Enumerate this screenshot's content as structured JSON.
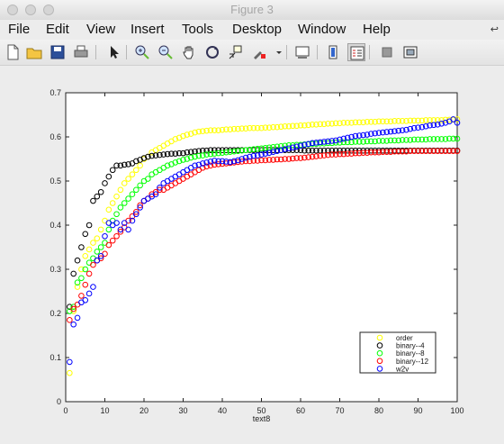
{
  "window": {
    "title": "Figure 3"
  },
  "menu": {
    "items": [
      "File",
      "Edit",
      "View",
      "Insert",
      "Tools",
      "Desktop",
      "Window",
      "Help"
    ]
  },
  "colors": {
    "order": "#ffff00",
    "binary-4": "#000000",
    "binary-8": "#00ff00",
    "binary-12": "#ff0000",
    "w2v": "#0000ff"
  },
  "chart_data": {
    "type": "scatter",
    "title": "",
    "xlabel": "text8",
    "ylabel": "",
    "xlim": [
      0,
      100
    ],
    "ylim": [
      0,
      0.7
    ],
    "xticks": [
      "0",
      "10",
      "20",
      "30",
      "40",
      "50",
      "60",
      "70",
      "80",
      "90",
      "100"
    ],
    "yticks": [
      "0",
      "0.1",
      "0.2",
      "0.3",
      "0.4",
      "0.5",
      "0.6",
      "0.7"
    ],
    "grid": false,
    "legend_position": "bottom-right",
    "series": [
      {
        "name": "order",
        "color": "#ffff00",
        "x": [
          1,
          2,
          3,
          4,
          5,
          6,
          7,
          8,
          9,
          10,
          11,
          12,
          13,
          14,
          15,
          16,
          17,
          18,
          19,
          20,
          21,
          22,
          23,
          24,
          25,
          26,
          27,
          28,
          29,
          30,
          31,
          32,
          33,
          34,
          35,
          36,
          37,
          38,
          39,
          40,
          41,
          42,
          43,
          44,
          45,
          46,
          47,
          48,
          49,
          50,
          51,
          52,
          53,
          54,
          55,
          56,
          57,
          58,
          59,
          60,
          61,
          62,
          63,
          64,
          65,
          66,
          67,
          68,
          69,
          70,
          71,
          72,
          73,
          74,
          75,
          76,
          77,
          78,
          79,
          80,
          81,
          82,
          83,
          84,
          85,
          86,
          87,
          88,
          89,
          90,
          91,
          92,
          93,
          94,
          95,
          96,
          97,
          98,
          99,
          100
        ],
        "y": [
          0.065,
          0.205,
          0.26,
          0.3,
          0.33,
          0.345,
          0.36,
          0.37,
          0.39,
          0.41,
          0.435,
          0.45,
          0.465,
          0.48,
          0.495,
          0.505,
          0.515,
          0.525,
          0.535,
          0.55,
          0.555,
          0.565,
          0.57,
          0.575,
          0.58,
          0.585,
          0.59,
          0.595,
          0.598,
          0.602,
          0.605,
          0.607,
          0.61,
          0.612,
          0.613,
          0.614,
          0.615,
          0.615,
          0.615,
          0.616,
          0.617,
          0.617,
          0.618,
          0.618,
          0.619,
          0.619,
          0.62,
          0.62,
          0.62,
          0.62,
          0.621,
          0.621,
          0.622,
          0.622,
          0.623,
          0.624,
          0.624,
          0.625,
          0.625,
          0.626,
          0.626,
          0.627,
          0.628,
          0.628,
          0.629,
          0.629,
          0.63,
          0.63,
          0.631,
          0.631,
          0.632,
          0.632,
          0.632,
          0.633,
          0.633,
          0.633,
          0.634,
          0.634,
          0.634,
          0.635,
          0.635,
          0.635,
          0.635,
          0.636,
          0.636,
          0.636,
          0.636,
          0.637,
          0.637,
          0.637,
          0.637,
          0.638,
          0.638,
          0.638,
          0.638,
          0.638,
          0.639,
          0.639,
          0.639,
          0.64
        ]
      },
      {
        "name": "binary--4",
        "color": "#000000",
        "x": [
          1,
          2,
          3,
          4,
          5,
          6,
          7,
          8,
          9,
          10,
          11,
          12,
          13,
          14,
          15,
          16,
          17,
          18,
          19,
          20,
          21,
          22,
          23,
          24,
          25,
          26,
          27,
          28,
          29,
          30,
          31,
          32,
          33,
          34,
          35,
          36,
          37,
          38,
          39,
          40,
          41,
          42,
          43,
          44,
          45,
          46,
          47,
          48,
          49,
          50,
          51,
          52,
          53,
          54,
          55,
          56,
          57,
          58,
          59,
          60,
          61,
          62,
          63,
          64,
          65,
          66,
          67,
          68,
          69,
          70,
          71,
          72,
          73,
          74,
          75,
          76,
          77,
          78,
          79,
          80,
          81,
          82,
          83,
          84,
          85,
          86,
          87,
          88,
          89,
          90,
          91,
          92,
          93,
          94,
          95,
          96,
          97,
          98,
          99,
          100
        ],
        "y": [
          0.215,
          0.29,
          0.32,
          0.35,
          0.38,
          0.4,
          0.455,
          0.465,
          0.475,
          0.495,
          0.51,
          0.525,
          0.535,
          0.535,
          0.537,
          0.538,
          0.54,
          0.545,
          0.548,
          0.552,
          0.555,
          0.557,
          0.558,
          0.559,
          0.56,
          0.561,
          0.562,
          0.562,
          0.563,
          0.563,
          0.565,
          0.566,
          0.567,
          0.568,
          0.569,
          0.569,
          0.57,
          0.57,
          0.57,
          0.57,
          0.57,
          0.57,
          0.57,
          0.57,
          0.57,
          0.57,
          0.57,
          0.57,
          0.57,
          0.57,
          0.57,
          0.57,
          0.57,
          0.57,
          0.57,
          0.57,
          0.57,
          0.57,
          0.57,
          0.57,
          0.569,
          0.569,
          0.569,
          0.569,
          0.569,
          0.569,
          0.569,
          0.569,
          0.569,
          0.569,
          0.569,
          0.569,
          0.569,
          0.569,
          0.569,
          0.569,
          0.569,
          0.569,
          0.569,
          0.569,
          0.569,
          0.569,
          0.569,
          0.569,
          0.569,
          0.569,
          0.569,
          0.569,
          0.569,
          0.569,
          0.569,
          0.569,
          0.569,
          0.569,
          0.569,
          0.569,
          0.569,
          0.569,
          0.569,
          0.569
        ]
      },
      {
        "name": "binary--8",
        "color": "#00ff00",
        "x": [
          1,
          2,
          3,
          4,
          5,
          6,
          7,
          8,
          9,
          10,
          11,
          12,
          13,
          14,
          15,
          16,
          17,
          18,
          19,
          20,
          21,
          22,
          23,
          24,
          25,
          26,
          27,
          28,
          29,
          30,
          31,
          32,
          33,
          34,
          35,
          36,
          37,
          38,
          39,
          40,
          41,
          42,
          43,
          44,
          45,
          46,
          47,
          48,
          49,
          50,
          51,
          52,
          53,
          54,
          55,
          56,
          57,
          58,
          59,
          60,
          61,
          62,
          63,
          64,
          65,
          66,
          67,
          68,
          69,
          70,
          71,
          72,
          73,
          74,
          75,
          76,
          77,
          78,
          79,
          80,
          81,
          82,
          83,
          84,
          85,
          86,
          87,
          88,
          89,
          90,
          91,
          92,
          93,
          94,
          95,
          96,
          97,
          98,
          99,
          100
        ],
        "y": [
          0.205,
          0.215,
          0.27,
          0.28,
          0.3,
          0.315,
          0.325,
          0.34,
          0.35,
          0.36,
          0.39,
          0.41,
          0.425,
          0.44,
          0.45,
          0.46,
          0.47,
          0.48,
          0.49,
          0.5,
          0.505,
          0.515,
          0.52,
          0.525,
          0.53,
          0.535,
          0.538,
          0.542,
          0.545,
          0.548,
          0.55,
          0.553,
          0.555,
          0.557,
          0.558,
          0.56,
          0.561,
          0.562,
          0.563,
          0.564,
          0.565,
          0.566,
          0.567,
          0.568,
          0.569,
          0.57,
          0.571,
          0.572,
          0.573,
          0.574,
          0.575,
          0.576,
          0.577,
          0.578,
          0.579,
          0.58,
          0.581,
          0.581,
          0.582,
          0.582,
          0.583,
          0.583,
          0.584,
          0.584,
          0.585,
          0.585,
          0.586,
          0.586,
          0.587,
          0.587,
          0.588,
          0.588,
          0.588,
          0.589,
          0.589,
          0.589,
          0.59,
          0.59,
          0.59,
          0.591,
          0.591,
          0.591,
          0.592,
          0.592,
          0.592,
          0.593,
          0.593,
          0.593,
          0.594,
          0.594,
          0.594,
          0.594,
          0.595,
          0.595,
          0.595,
          0.595,
          0.595,
          0.596,
          0.596,
          0.596
        ]
      },
      {
        "name": "binary--12",
        "color": "#ff0000",
        "x": [
          1,
          2,
          3,
          4,
          5,
          6,
          7,
          8,
          9,
          10,
          11,
          12,
          13,
          14,
          15,
          16,
          17,
          18,
          19,
          20,
          21,
          22,
          23,
          24,
          25,
          26,
          27,
          28,
          29,
          30,
          31,
          32,
          33,
          34,
          35,
          36,
          37,
          38,
          39,
          40,
          41,
          42,
          43,
          44,
          45,
          46,
          47,
          48,
          49,
          50,
          51,
          52,
          53,
          54,
          55,
          56,
          57,
          58,
          59,
          60,
          61,
          62,
          63,
          64,
          65,
          66,
          67,
          68,
          69,
          70,
          71,
          72,
          73,
          74,
          75,
          76,
          77,
          78,
          79,
          80,
          81,
          82,
          83,
          84,
          85,
          86,
          87,
          88,
          89,
          90,
          91,
          92,
          93,
          94,
          95,
          96,
          97,
          98,
          99,
          100
        ],
        "y": [
          0.185,
          0.21,
          0.22,
          0.24,
          0.265,
          0.29,
          0.31,
          0.32,
          0.325,
          0.335,
          0.355,
          0.365,
          0.375,
          0.385,
          0.395,
          0.41,
          0.42,
          0.43,
          0.445,
          0.455,
          0.46,
          0.47,
          0.475,
          0.48,
          0.48,
          0.485,
          0.49,
          0.495,
          0.5,
          0.505,
          0.51,
          0.515,
          0.52,
          0.525,
          0.53,
          0.533,
          0.535,
          0.537,
          0.538,
          0.539,
          0.54,
          0.541,
          0.542,
          0.543,
          0.544,
          0.545,
          0.545,
          0.546,
          0.546,
          0.547,
          0.547,
          0.548,
          0.548,
          0.549,
          0.549,
          0.55,
          0.55,
          0.551,
          0.552,
          0.552,
          0.553,
          0.554,
          0.555,
          0.556,
          0.557,
          0.558,
          0.559,
          0.56,
          0.56,
          0.561,
          0.561,
          0.562,
          0.562,
          0.563,
          0.563,
          0.564,
          0.564,
          0.565,
          0.565,
          0.565,
          0.566,
          0.566,
          0.566,
          0.567,
          0.567,
          0.567,
          0.567,
          0.568,
          0.568,
          0.568,
          0.568,
          0.568,
          0.568,
          0.568,
          0.568,
          0.568,
          0.568,
          0.568,
          0.568,
          0.568
        ]
      },
      {
        "name": "w2v",
        "color": "#0000ff",
        "x": [
          1,
          2,
          3,
          4,
          5,
          6,
          7,
          8,
          9,
          10,
          11,
          12,
          13,
          14,
          15,
          16,
          17,
          18,
          19,
          20,
          21,
          22,
          23,
          24,
          25,
          26,
          27,
          28,
          29,
          30,
          31,
          32,
          33,
          34,
          35,
          36,
          37,
          38,
          39,
          40,
          41,
          42,
          43,
          44,
          45,
          46,
          47,
          48,
          49,
          50,
          51,
          52,
          53,
          54,
          55,
          56,
          57,
          58,
          59,
          60,
          61,
          62,
          63,
          64,
          65,
          66,
          67,
          68,
          69,
          70,
          71,
          72,
          73,
          74,
          75,
          76,
          77,
          78,
          79,
          80,
          81,
          82,
          83,
          84,
          85,
          86,
          87,
          88,
          89,
          90,
          91,
          92,
          93,
          94,
          95,
          96,
          97,
          98,
          99,
          100
        ],
        "y": [
          0.09,
          0.175,
          0.19,
          0.225,
          0.23,
          0.245,
          0.26,
          0.32,
          0.33,
          0.375,
          0.405,
          0.4,
          0.405,
          0.39,
          0.405,
          0.39,
          0.41,
          0.425,
          0.44,
          0.455,
          0.46,
          0.465,
          0.47,
          0.485,
          0.495,
          0.5,
          0.505,
          0.51,
          0.515,
          0.52,
          0.525,
          0.53,
          0.535,
          0.537,
          0.54,
          0.542,
          0.544,
          0.546,
          0.545,
          0.545,
          0.544,
          0.543,
          0.545,
          0.547,
          0.55,
          0.553,
          0.555,
          0.557,
          0.558,
          0.56,
          0.562,
          0.564,
          0.566,
          0.568,
          0.57,
          0.572,
          0.574,
          0.576,
          0.578,
          0.58,
          0.582,
          0.584,
          0.586,
          0.587,
          0.588,
          0.589,
          0.59,
          0.591,
          0.592,
          0.594,
          0.596,
          0.598,
          0.6,
          0.602,
          0.603,
          0.604,
          0.605,
          0.607,
          0.608,
          0.609,
          0.61,
          0.611,
          0.612,
          0.613,
          0.614,
          0.615,
          0.616,
          0.618,
          0.62,
          0.621,
          0.622,
          0.624,
          0.626,
          0.627,
          0.628,
          0.63,
          0.632,
          0.635,
          0.64,
          0.632
        ]
      }
    ]
  }
}
